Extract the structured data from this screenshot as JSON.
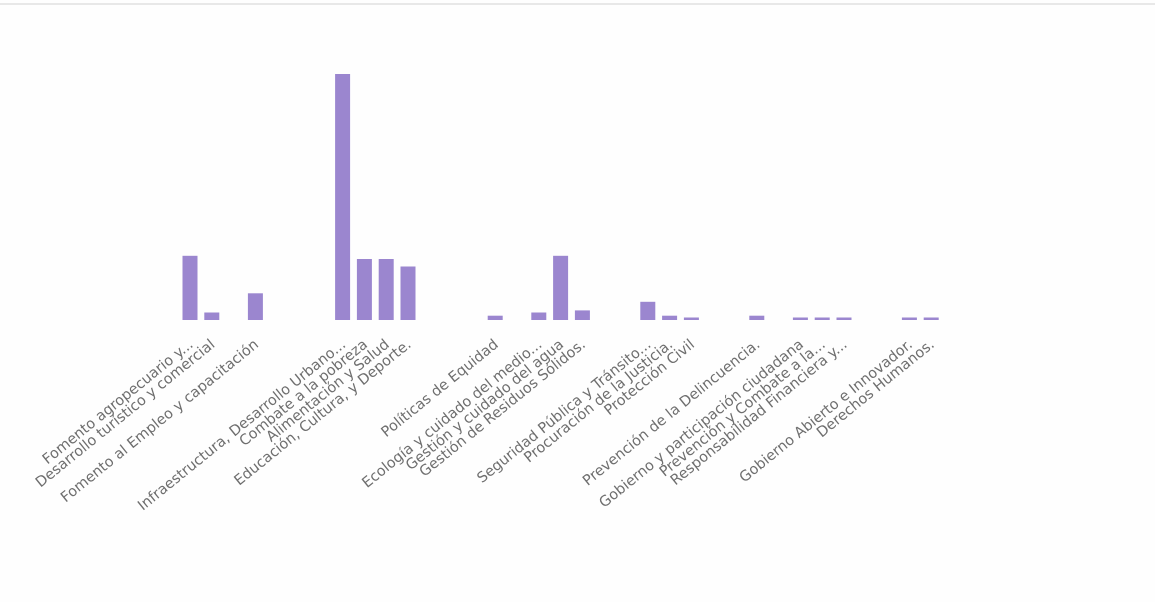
{
  "chart_data": {
    "type": "bar",
    "title": "",
    "xlabel": "",
    "ylabel": "",
    "grid": false,
    "legend": "none",
    "bar_color": "#9b86cf",
    "ylim": [
      0,
      23
    ],
    "categories": [
      "Fomento agropecuario y...",
      "Desarrollo turístico y comercial",
      "",
      "Fomento al Empleo y capacitación",
      "",
      "",
      "",
      "Infraestructura, Desarrollo Urbano...",
      "Combate a la pobreza",
      "Alimentación y Salud",
      "Educación, Cultura, y Deporte.",
      "",
      "",
      "",
      "Políticas de Equidad",
      "",
      "Ecología y cuidado del medio...",
      "Gestión y cuidado del agua",
      "Gestión de Residuos Sólidos.",
      "",
      "",
      "Seguridad Pública y Tránsito...",
      "Procuración de la Justicia.",
      "Protección Civil",
      "",
      "",
      "Prevención de la Delincuencia.",
      "",
      "Gobierno y participación ciudadana",
      "Prevención y Combate a la...",
      "Responsabilidad Financiera y...",
      "",
      "",
      "Gobierno Abierto e Innovador.",
      "Derechos Humanos."
    ],
    "values": [
      6,
      0.7,
      0,
      2.5,
      0,
      0,
      0,
      23,
      5.7,
      5.7,
      5,
      0,
      0,
      0,
      0.4,
      0,
      0.7,
      6,
      0.9,
      0,
      0,
      1.7,
      0.4,
      0.15,
      0,
      0,
      0.4,
      0,
      0.2,
      0.2,
      0.15,
      0,
      0,
      0.2,
      0.15
    ]
  }
}
